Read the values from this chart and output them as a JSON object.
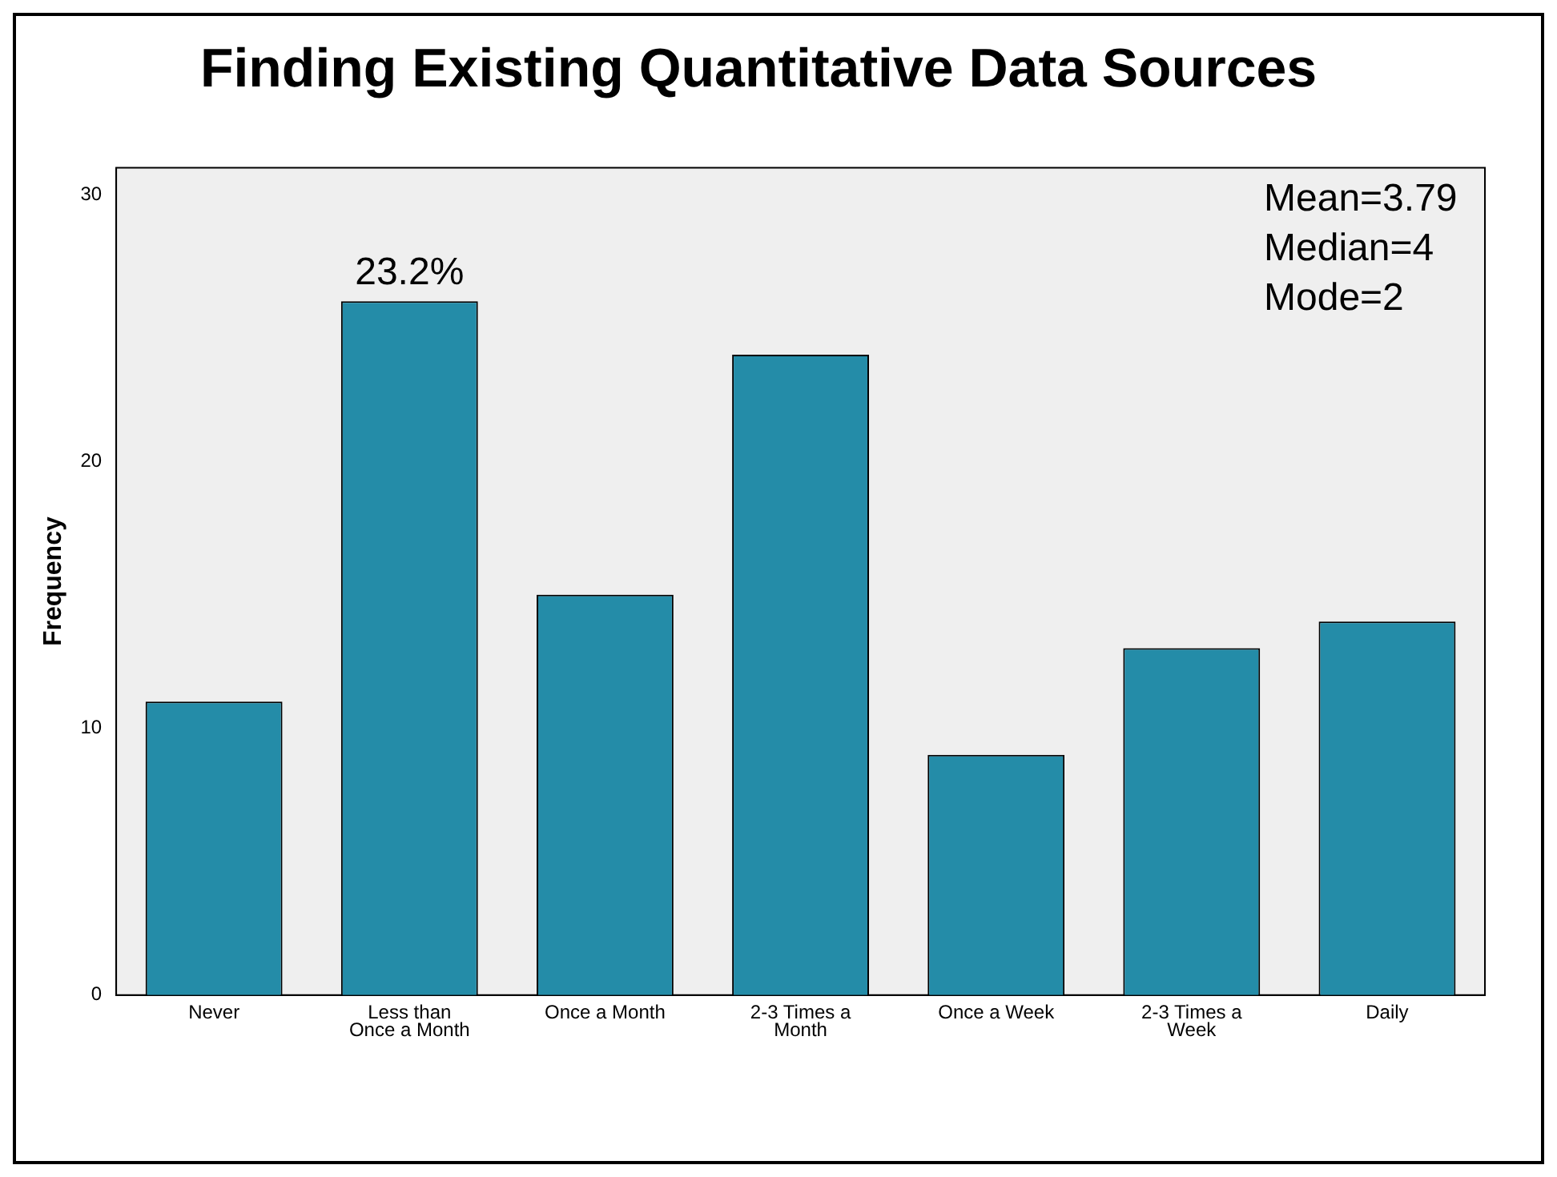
{
  "chart_data": {
    "type": "bar",
    "title": "Finding Existing Quantitative Data Sources",
    "ylabel": "Frequency",
    "categories": [
      "Never",
      "Less than Once a Month",
      "Once a Month",
      "2-3 Times a Month",
      "Once a Week",
      "2-3 Times a Week",
      "Daily"
    ],
    "values": [
      11,
      26,
      15,
      24,
      9,
      13,
      14
    ],
    "color": "#248ca8",
    "ylim": [
      0,
      31
    ],
    "yticks": [
      0,
      10,
      20,
      30
    ],
    "grid": false,
    "legend": false,
    "annotations": [
      {
        "text": "23.2%",
        "x": "Less than Once a Month",
        "y": 26
      },
      "Mean=3.79",
      "Median=4",
      "Mode=2"
    ]
  }
}
